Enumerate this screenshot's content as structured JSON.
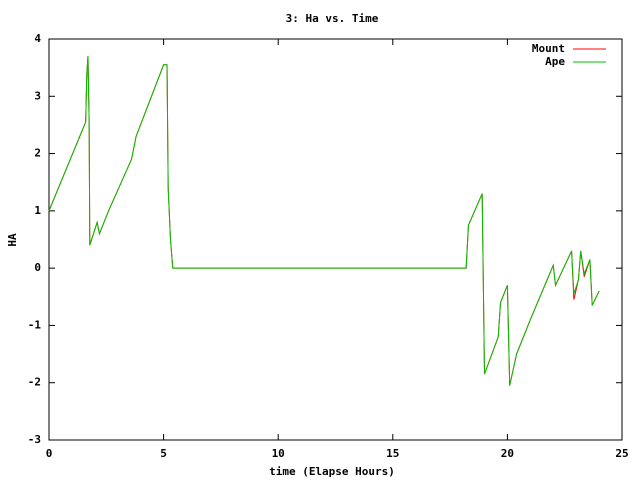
{
  "chart_data": {
    "type": "line",
    "title": "3: Ha vs. Time",
    "x_label": "time (Elapse Hours)",
    "y_label": "HA",
    "x": [
      0,
      1.6,
      1.65,
      1.7,
      1.75,
      1.78,
      2.1,
      2.2,
      2.6,
      3.6,
      3.8,
      5.0,
      5.15,
      5.2,
      5.3,
      5.4,
      18.2,
      18.3,
      18.9,
      19.0,
      19.6,
      19.7,
      20.0,
      20.1,
      20.4,
      21.0,
      22.0,
      22.1,
      22.8,
      22.9,
      23.1,
      23.2,
      23.35,
      23.6,
      23.7,
      24.0
    ],
    "series": [
      {
        "name": "Mount",
        "color": "#ff0000",
        "values": [
          1,
          2.55,
          3.4,
          3.7,
          2.6,
          0.4,
          0.8,
          0.6,
          1.0,
          1.9,
          2.3,
          3.55,
          3.55,
          1.4,
          0.5,
          0,
          0,
          0.75,
          1.3,
          -1.85,
          -1.2,
          -0.6,
          -0.3,
          -2.05,
          -1.5,
          -0.9,
          0.05,
          -0.3,
          0.3,
          -0.55,
          -0.2,
          0.3,
          -0.15,
          0.15,
          -0.65,
          -0.4
        ]
      },
      {
        "name": "Ape",
        "color": "#00c000",
        "values": [
          1,
          2.55,
          3.4,
          3.7,
          2.6,
          0.4,
          0.8,
          0.6,
          1.0,
          1.9,
          2.3,
          3.55,
          3.55,
          1.4,
          0.5,
          0,
          0,
          0.75,
          1.3,
          -1.85,
          -1.2,
          -0.6,
          -0.3,
          -2.05,
          -1.5,
          -0.9,
          0.05,
          -0.3,
          0.3,
          -0.45,
          -0.2,
          0.3,
          -0.1,
          0.15,
          -0.65,
          -0.4
        ]
      }
    ],
    "xlim": [
      0,
      25
    ],
    "xticks": [
      0,
      5,
      10,
      15,
      20,
      25
    ],
    "ylim": [
      -3,
      4
    ],
    "yticks": [
      -3,
      -2,
      -1,
      0,
      1,
      2,
      3,
      4
    ],
    "legend": "top-right"
  }
}
